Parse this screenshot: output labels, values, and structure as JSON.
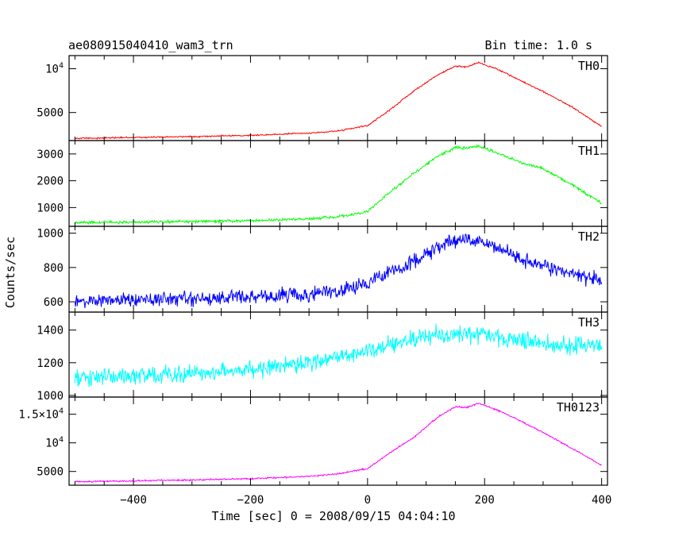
{
  "header": {
    "title": "ae080915040410_wam3_trn",
    "bin_time": "Bin time: 1.0 s"
  },
  "chart_data": {
    "type": "line",
    "title": "ae080915040410_wam3_trn",
    "subtitle": "Bin time: 1.0 s",
    "xlabel": "Time [sec] 0 = 2008/09/15 04:04:10",
    "ylabel": "Counts/sec",
    "xlim": [
      -510,
      410
    ],
    "x_ticks": [
      -400,
      -200,
      0,
      200,
      400
    ],
    "x_tick_labels": [
      "−400",
      "−200",
      "0",
      "200",
      "400"
    ],
    "grid": false,
    "panels": [
      {
        "name": "TH0",
        "color": "#ff0000",
        "ylim": [
          1800,
          11500
        ],
        "y_ticks": [
          5000,
          10000
        ],
        "y_tick_labels": [
          "5000",
          "10^4"
        ],
        "noise": 70,
        "x": [
          -500,
          -400,
          -300,
          -200,
          -100,
          -50,
          0,
          40,
          80,
          120,
          150,
          170,
          190,
          220,
          260,
          300,
          350,
          400
        ],
        "values": [
          2050,
          2150,
          2250,
          2400,
          2650,
          2900,
          3500,
          5400,
          7500,
          9300,
          10300,
          10200,
          10700,
          10000,
          8700,
          7400,
          5600,
          3400
        ]
      },
      {
        "name": "TH1",
        "color": "#00ff00",
        "ylim": [
          300,
          3500
        ],
        "y_ticks": [
          1000,
          2000,
          3000
        ],
        "y_tick_labels": [
          "1000",
          "2000",
          "3000"
        ],
        "noise": 45,
        "x": [
          -500,
          -400,
          -300,
          -200,
          -100,
          -50,
          0,
          40,
          80,
          120,
          150,
          170,
          190,
          220,
          260,
          300,
          350,
          400
        ],
        "values": [
          440,
          460,
          480,
          510,
          570,
          650,
          850,
          1600,
          2300,
          2900,
          3250,
          3200,
          3300,
          3050,
          2700,
          2450,
          1850,
          1150
        ]
      },
      {
        "name": "TH2",
        "color": "#0000ff",
        "ylim": [
          540,
          1040
        ],
        "y_ticks": [
          600,
          800,
          1000
        ],
        "y_tick_labels": [
          "600",
          "800",
          "1000"
        ],
        "noise": 35,
        "x": [
          -500,
          -400,
          -300,
          -200,
          -100,
          -50,
          0,
          40,
          80,
          120,
          150,
          170,
          190,
          220,
          260,
          300,
          350,
          400
        ],
        "values": [
          605,
          610,
          618,
          630,
          645,
          665,
          705,
          770,
          840,
          920,
          960,
          955,
          965,
          915,
          855,
          810,
          760,
          725
        ]
      },
      {
        "name": "TH3",
        "color": "#00ffff",
        "ylim": [
          990,
          1510
        ],
        "y_ticks": [
          1000,
          1200,
          1400
        ],
        "y_tick_labels": [
          "1000",
          "1200",
          "1400"
        ],
        "noise": 45,
        "x": [
          -500,
          -400,
          -300,
          -200,
          -100,
          -50,
          0,
          40,
          80,
          120,
          150,
          170,
          190,
          220,
          260,
          300,
          350,
          400
        ],
        "values": [
          1100,
          1115,
          1135,
          1165,
          1200,
          1225,
          1265,
          1310,
          1345,
          1370,
          1380,
          1375,
          1380,
          1360,
          1335,
          1315,
          1305,
          1305
        ]
      },
      {
        "name": "TH0123",
        "color": "#ff00ff",
        "ylim": [
          2600,
          18000
        ],
        "y_ticks": [
          5000,
          10000,
          15000
        ],
        "y_tick_labels": [
          "5000",
          "10^4",
          "1.5×10^4"
        ],
        "noise": 110,
        "x": [
          -500,
          -400,
          -300,
          -200,
          -100,
          -50,
          0,
          40,
          80,
          120,
          150,
          170,
          190,
          220,
          260,
          300,
          350,
          400
        ],
        "values": [
          3200,
          3350,
          3500,
          3750,
          4150,
          4600,
          5500,
          8400,
          11000,
          14500,
          16300,
          16200,
          16900,
          15800,
          13900,
          11800,
          9000,
          6100
        ]
      }
    ]
  }
}
